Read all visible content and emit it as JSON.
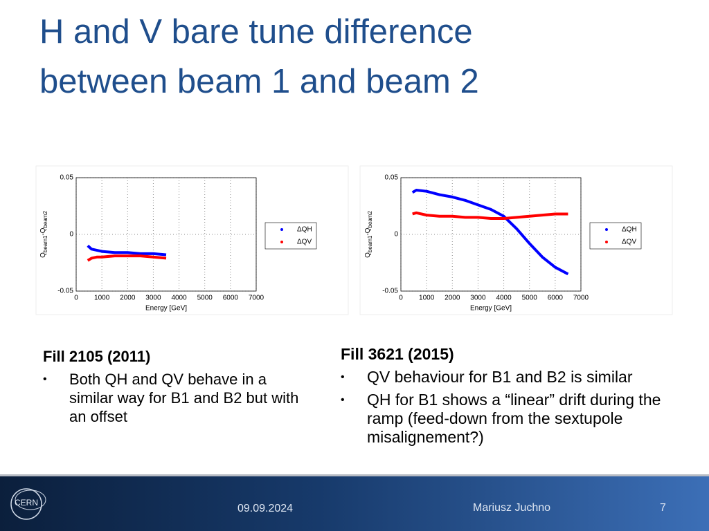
{
  "title": [
    "H and V bare tune difference",
    "between beam 1 and beam 2"
  ],
  "chart_data": [
    {
      "type": "line",
      "xlabel": "Energy [GeV]",
      "ylabel": [
        "Q",
        "beam1",
        "-Q",
        "beam2"
      ],
      "xlim": [
        0,
        7000
      ],
      "ylim": [
        -0.05,
        0.05
      ],
      "xticks": [
        0,
        1000,
        2000,
        3000,
        4000,
        5000,
        6000,
        7000
      ],
      "yticks": [
        -0.05,
        0,
        0.05
      ],
      "grid": true,
      "legend": "right",
      "x": [
        450,
        600,
        800,
        1000,
        1500,
        2000,
        2500,
        3000,
        3500
      ],
      "series": [
        {
          "name": "ΔQH",
          "color": "#0000ff",
          "values": [
            -0.01,
            -0.013,
            -0.014,
            -0.015,
            -0.016,
            -0.016,
            -0.017,
            -0.017,
            -0.018
          ]
        },
        {
          "name": "ΔQV",
          "color": "#ff0000",
          "values": [
            -0.023,
            -0.021,
            -0.02,
            -0.02,
            -0.019,
            -0.019,
            -0.019,
            -0.02,
            -0.021
          ]
        }
      ]
    },
    {
      "type": "line",
      "xlabel": "Energy [GeV]",
      "ylabel": [
        "Q",
        "beam1",
        "-Q",
        "beam2"
      ],
      "xlim": [
        0,
        7000
      ],
      "ylim": [
        -0.05,
        0.05
      ],
      "xticks": [
        0,
        1000,
        2000,
        3000,
        4000,
        5000,
        6000,
        7000
      ],
      "yticks": [
        -0.05,
        0,
        0.05
      ],
      "grid": true,
      "legend": "right",
      "x": [
        450,
        600,
        1000,
        1500,
        2000,
        2500,
        3000,
        3500,
        4000,
        4500,
        5000,
        5500,
        6000,
        6500
      ],
      "series": [
        {
          "name": "ΔQH",
          "color": "#0000ff",
          "values": [
            0.037,
            0.039,
            0.038,
            0.035,
            0.033,
            0.03,
            0.026,
            0.022,
            0.016,
            0.005,
            -0.008,
            -0.02,
            -0.029,
            -0.035
          ]
        },
        {
          "name": "ΔQV",
          "color": "#ff0000",
          "values": [
            0.018,
            0.019,
            0.017,
            0.016,
            0.016,
            0.015,
            0.015,
            0.014,
            0.014,
            0.015,
            0.016,
            0.017,
            0.018,
            0.018
          ]
        }
      ]
    }
  ],
  "left": {
    "heading": "Fill 2105 (2011)",
    "bullets": [
      "Both QH and QV behave in a similar way for B1 and B2 but with an offset"
    ]
  },
  "right": {
    "heading": "Fill 3621 (2015)",
    "bullets": [
      "QV behaviour for B1 and B2 is similar",
      "QH for B1 shows a “linear” drift during the ramp (feed-down from the sextupole misalignement?)"
    ]
  },
  "footer": {
    "logo": "CERN",
    "date": "09.09.2024",
    "author": "Mariusz Juchno",
    "page": "7"
  }
}
